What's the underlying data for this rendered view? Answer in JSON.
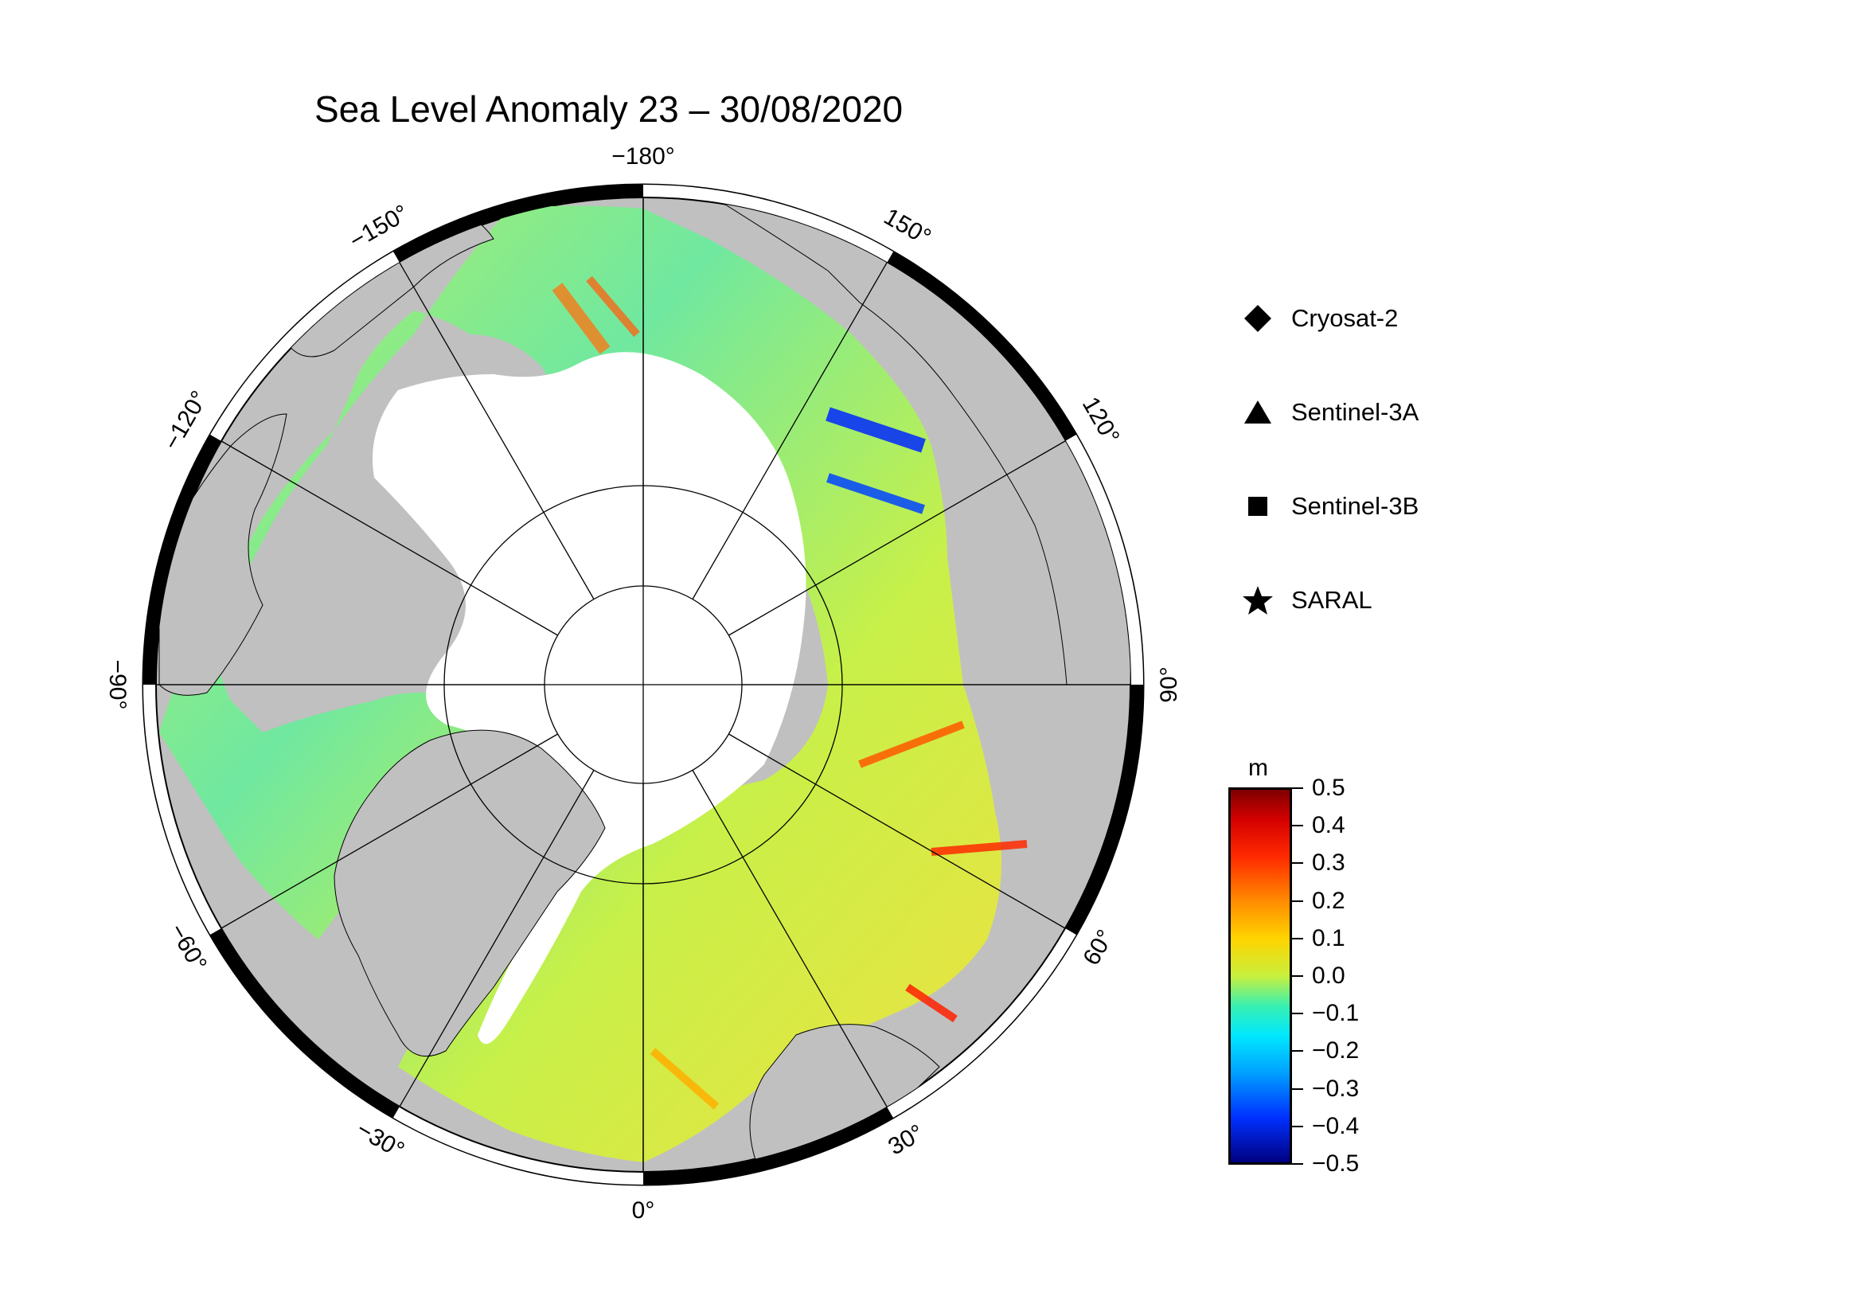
{
  "title": "Sea Level Anomaly 23 – 30/08/2020",
  "map": {
    "projection": "north polar stereographic",
    "center": "North Pole",
    "meridian_labels": [
      {
        "lon": 180,
        "text": "−180°"
      },
      {
        "lon": 150,
        "text": "150°"
      },
      {
        "lon": 120,
        "text": "120°"
      },
      {
        "lon": 90,
        "text": "90°"
      },
      {
        "lon": 60,
        "text": "60°"
      },
      {
        "lon": 30,
        "text": "30°"
      },
      {
        "lon": 0,
        "text": "0°"
      },
      {
        "lon": -30,
        "text": "−30°"
      },
      {
        "lon": -60,
        "text": "−60°"
      },
      {
        "lon": -90,
        "text": "−90°"
      },
      {
        "lon": -120,
        "text": "−120°"
      },
      {
        "lon": -150,
        "text": "−150°"
      }
    ],
    "colors": {
      "land": "#c0c0c0",
      "ice": "#ffffff",
      "frame": "#000000"
    }
  },
  "legend": [
    {
      "label": "Cryosat-2",
      "marker": "diamond-icon"
    },
    {
      "label": "Sentinel-3A",
      "marker": "triangle-icon"
    },
    {
      "label": "Sentinel-3B",
      "marker": "square-icon"
    },
    {
      "label": "SARAL",
      "marker": "star-icon"
    }
  ],
  "colorbar": {
    "unit": "m",
    "ticks": [
      "0.5",
      "0.4",
      "0.3",
      "0.2",
      "0.1",
      "0.0",
      "−0.1",
      "−0.2",
      "−0.3",
      "−0.4",
      "−0.5"
    ],
    "range": [
      -0.5,
      0.5
    ]
  }
}
